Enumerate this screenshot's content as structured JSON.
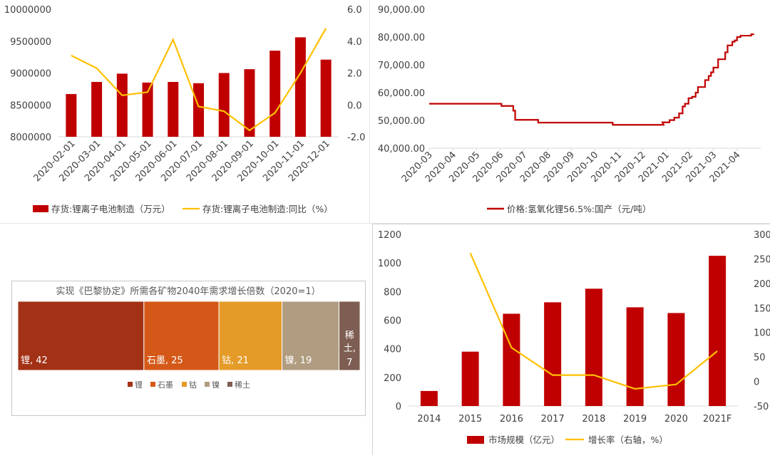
{
  "colors": {
    "red": "#c00000",
    "yellow": "#ffc000",
    "darkred": "#c00000",
    "axis": "#d9d9d9"
  },
  "chart_data": [
    {
      "id": "inventory",
      "type": "bar",
      "categories": [
        "2020-02-01",
        "2020-03-01",
        "2020-04-01",
        "2020-05-01",
        "2020-06-01",
        "2020-07-01",
        "2020-08-01",
        "2020-09-01",
        "2020-10-01",
        "2020-11-01",
        "2020-12-01"
      ],
      "series": [
        {
          "name": "存货:锂离子电池制造（万元）",
          "type": "bar",
          "axis": "left",
          "values": [
            8670000,
            8860000,
            8990000,
            8850000,
            8860000,
            8840000,
            9000000,
            9060000,
            9350000,
            9560000,
            9210000
          ]
        },
        {
          "name": "存货:锂离子电池制造:同比（%）",
          "type": "line",
          "axis": "right",
          "values": [
            3.1,
            2.3,
            0.6,
            0.8,
            4.1,
            -0.1,
            -0.4,
            -1.6,
            -0.5,
            2.0,
            4.8
          ]
        }
      ],
      "ylim": [
        8000000,
        10000000
      ],
      "yticks": [
        "10000000",
        "9500000",
        "9000000",
        "8500000",
        "8000000"
      ],
      "ylim_right": [
        -2,
        6
      ],
      "yticks_right": [
        "6.0",
        "4.0",
        "2.0",
        "0.0",
        "-2.0"
      ],
      "legend": "bottom"
    },
    {
      "id": "lithium_price",
      "type": "line",
      "xticks": [
        "2020-03",
        "2020-04",
        "2020-05",
        "2020-06",
        "2020-07",
        "2020-08",
        "2020-09",
        "2020-10",
        "2020-11",
        "2020-12",
        "2021-01",
        "2021-02",
        "2021-03",
        "2021-04"
      ],
      "series": [
        {
          "name": "价格:氢氧化锂56.5%:国产（元/吨）",
          "x": [
            0,
            3.05,
            3.05,
            3.55,
            3.55,
            3.63,
            3.63,
            4.6,
            4.6,
            7.75,
            7.75,
            9.9,
            9.9,
            9.85,
            10.15,
            10.15,
            10.35,
            10.35,
            10.55,
            10.55,
            10.7,
            10.7,
            10.8,
            10.8,
            10.95,
            10.95,
            11.1,
            11.1,
            11.25,
            11.25,
            11.35,
            11.35,
            11.65,
            11.65,
            11.8,
            11.8,
            11.9,
            11.9,
            12.0,
            12.0,
            12.2,
            12.2,
            12.5,
            12.5,
            12.6,
            12.6,
            12.8,
            12.8,
            12.9,
            12.9,
            13.0,
            13.0,
            13.15,
            13.15,
            13.6,
            13.6,
            13.72
          ],
          "values": [
            56000,
            56000,
            55200,
            55200,
            53500,
            53500,
            50200,
            50200,
            49200,
            49200,
            48400,
            48400,
            48400,
            49300,
            49300,
            50100,
            50100,
            51000,
            51000,
            52500,
            52500,
            55000,
            55000,
            56000,
            56000,
            58000,
            58000,
            58500,
            58500,
            60000,
            60000,
            62000,
            62000,
            64500,
            64500,
            66000,
            66000,
            67300,
            67300,
            69000,
            69000,
            72000,
            72000,
            74500,
            74500,
            77000,
            77000,
            78300,
            78300,
            78800,
            78800,
            80000,
            80000,
            80500,
            80500,
            81000,
            81000
          ]
        }
      ],
      "ylim": [
        40000,
        90000
      ],
      "yticks": [
        "90,000.00",
        "80,000.00",
        "70,000.00",
        "60,000.00",
        "50,000.00",
        "40,000.00"
      ],
      "legend": "bottom"
    },
    {
      "id": "mineral_demand",
      "type": "bar",
      "title": "实现《巴黎协定》所需各矿物2040年需求增长倍数（2020=1）",
      "categories": [
        "锂",
        "石墨",
        "钴",
        "镍",
        "稀土"
      ],
      "values": [
        42,
        25,
        21,
        19,
        7
      ],
      "labels": [
        "锂, 42",
        "石墨, 25",
        "钴, 21",
        "镍, 19",
        "稀土, 7"
      ],
      "colors": [
        "#a33116",
        "#d45918",
        "#e49b28",
        "#b09c80",
        "#7e5d52"
      ],
      "legend": "bottom"
    },
    {
      "id": "market_size",
      "type": "bar",
      "categories": [
        "2014",
        "2015",
        "2016",
        "2017",
        "2018",
        "2019",
        "2020",
        "2021F"
      ],
      "series": [
        {
          "name": "市场规模（亿元）",
          "type": "bar",
          "axis": "left",
          "values": [
            105,
            380,
            645,
            725,
            820,
            690,
            650,
            1050
          ]
        },
        {
          "name": "增长率（右轴，%）",
          "type": "line",
          "axis": "right",
          "values": [
            null,
            262,
            69,
            13,
            13,
            -15,
            -6,
            62
          ]
        }
      ],
      "ylim": [
        0,
        1200
      ],
      "yticks": [
        "1200",
        "1000",
        "800",
        "600",
        "400",
        "200",
        "0"
      ],
      "ylim_right": [
        -50,
        300
      ],
      "yticks_right": [
        "300",
        "250",
        "200",
        "150",
        "100",
        "50",
        "0",
        "-50"
      ],
      "legend": "bottom"
    }
  ]
}
